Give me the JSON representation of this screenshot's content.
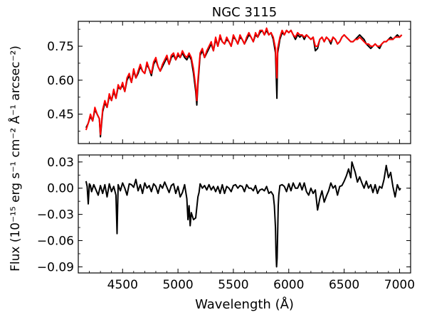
{
  "chart_data": [
    {
      "type": "line",
      "title": "NGC 3115",
      "xlabel": "",
      "ylabel": "",
      "xlim": [
        4100,
        7100
      ],
      "ylim": [
        0.32,
        0.86
      ],
      "yticks": [
        0.45,
        0.6,
        0.75
      ],
      "ytick_labels": [
        "0.45",
        "0.60",
        "0.75"
      ],
      "xticks": [
        4500,
        5000,
        5500,
        6000,
        6500,
        7000
      ],
      "series": [
        {
          "color": "#000000",
          "x": [
            4170,
            4190,
            4210,
            4230,
            4250,
            4270,
            4290,
            4300,
            4320,
            4340,
            4360,
            4380,
            4400,
            4420,
            4440,
            4460,
            4480,
            4500,
            4520,
            4540,
            4560,
            4580,
            4600,
            4620,
            4640,
            4660,
            4680,
            4700,
            4720,
            4740,
            4760,
            4780,
            4800,
            4820,
            4840,
            4860,
            4880,
            4900,
            4920,
            4940,
            4960,
            4980,
            5000,
            5020,
            5040,
            5060,
            5080,
            5100,
            5120,
            5140,
            5160,
            5170,
            5180,
            5200,
            5220,
            5240,
            5260,
            5280,
            5300,
            5320,
            5340,
            5360,
            5380,
            5400,
            5420,
            5440,
            5460,
            5480,
            5500,
            5520,
            5540,
            5560,
            5580,
            5600,
            5620,
            5640,
            5660,
            5680,
            5700,
            5720,
            5740,
            5760,
            5780,
            5800,
            5820,
            5840,
            5860,
            5880,
            5893,
            5900,
            5920,
            5940,
            5960,
            5980,
            6000,
            6020,
            6040,
            6060,
            6080,
            6100,
            6120,
            6140,
            6160,
            6180,
            6200,
            6220,
            6240,
            6260,
            6280,
            6300,
            6320,
            6340,
            6360,
            6380,
            6400,
            6420,
            6440,
            6460,
            6480,
            6500,
            6520,
            6540,
            6560,
            6580,
            6600,
            6620,
            6640,
            6660,
            6680,
            6700,
            6720,
            6740,
            6760,
            6780,
            6800,
            6820,
            6840,
            6860,
            6880,
            6900,
            6920,
            6940,
            6960,
            6980,
            7000,
            7020
          ],
          "y": [
            0.39,
            0.41,
            0.44,
            0.42,
            0.47,
            0.45,
            0.43,
            0.35,
            0.46,
            0.5,
            0.48,
            0.53,
            0.51,
            0.55,
            0.52,
            0.57,
            0.56,
            0.58,
            0.55,
            0.6,
            0.62,
            0.59,
            0.64,
            0.61,
            0.63,
            0.66,
            0.64,
            0.63,
            0.67,
            0.65,
            0.62,
            0.67,
            0.69,
            0.66,
            0.64,
            0.66,
            0.68,
            0.7,
            0.67,
            0.7,
            0.71,
            0.69,
            0.71,
            0.7,
            0.72,
            0.7,
            0.69,
            0.71,
            0.69,
            0.63,
            0.55,
            0.49,
            0.58,
            0.71,
            0.73,
            0.7,
            0.72,
            0.74,
            0.76,
            0.73,
            0.78,
            0.75,
            0.79,
            0.77,
            0.76,
            0.78,
            0.77,
            0.75,
            0.79,
            0.78,
            0.76,
            0.79,
            0.78,
            0.76,
            0.78,
            0.8,
            0.79,
            0.77,
            0.8,
            0.79,
            0.81,
            0.82,
            0.8,
            0.82,
            0.8,
            0.81,
            0.78,
            0.72,
            0.52,
            0.72,
            0.78,
            0.81,
            0.8,
            0.82,
            0.81,
            0.82,
            0.8,
            0.78,
            0.8,
            0.79,
            0.8,
            0.78,
            0.8,
            0.79,
            0.78,
            0.79,
            0.73,
            0.74,
            0.78,
            0.79,
            0.77,
            0.79,
            0.78,
            0.76,
            0.79,
            0.78,
            0.76,
            0.77,
            0.79,
            0.8,
            0.79,
            0.78,
            0.77,
            0.77,
            0.78,
            0.79,
            0.8,
            0.79,
            0.78,
            0.76,
            0.75,
            0.74,
            0.75,
            0.76,
            0.75,
            0.74,
            0.76,
            0.77,
            0.77,
            0.78,
            0.79,
            0.78,
            0.79,
            0.8,
            0.79,
            0.8
          ]
        },
        {
          "color": "#ff0000",
          "x": [
            4170,
            4190,
            4210,
            4230,
            4250,
            4270,
            4290,
            4300,
            4320,
            4340,
            4360,
            4380,
            4400,
            4420,
            4440,
            4460,
            4480,
            4500,
            4520,
            4540,
            4560,
            4580,
            4600,
            4620,
            4640,
            4660,
            4680,
            4700,
            4720,
            4740,
            4760,
            4780,
            4800,
            4820,
            4840,
            4860,
            4880,
            4900,
            4920,
            4940,
            4960,
            4980,
            5000,
            5020,
            5040,
            5060,
            5080,
            5100,
            5120,
            5140,
            5160,
            5170,
            5180,
            5200,
            5220,
            5240,
            5260,
            5280,
            5300,
            5320,
            5340,
            5360,
            5380,
            5400,
            5420,
            5440,
            5460,
            5480,
            5500,
            5520,
            5540,
            5560,
            5580,
            5600,
            5620,
            5640,
            5660,
            5680,
            5700,
            5720,
            5740,
            5760,
            5780,
            5800,
            5820,
            5840,
            5860,
            5880,
            5893,
            5900,
            5920,
            5940,
            5960,
            5980,
            6000,
            6020,
            6040,
            6060,
            6080,
            6100,
            6120,
            6140,
            6160,
            6180,
            6200,
            6220,
            6240,
            6260,
            6280,
            6300,
            6320,
            6340,
            6360,
            6380,
            6400,
            6420,
            6440,
            6460,
            6480,
            6500,
            6520,
            6540,
            6560,
            6580,
            6600,
            6620,
            6640,
            6660,
            6680,
            6700,
            6720,
            6740,
            6760,
            6780,
            6800,
            6820,
            6840,
            6860,
            6880,
            6900,
            6920,
            6940,
            6960,
            6980,
            7000,
            7020
          ],
          "y": [
            0.38,
            0.41,
            0.45,
            0.42,
            0.48,
            0.45,
            0.43,
            0.36,
            0.47,
            0.51,
            0.48,
            0.54,
            0.51,
            0.56,
            0.52,
            0.58,
            0.56,
            0.59,
            0.55,
            0.61,
            0.63,
            0.59,
            0.65,
            0.61,
            0.64,
            0.67,
            0.64,
            0.63,
            0.68,
            0.65,
            0.63,
            0.68,
            0.7,
            0.66,
            0.64,
            0.67,
            0.69,
            0.71,
            0.67,
            0.71,
            0.72,
            0.69,
            0.72,
            0.7,
            0.73,
            0.71,
            0.7,
            0.72,
            0.7,
            0.65,
            0.57,
            0.51,
            0.6,
            0.72,
            0.74,
            0.7,
            0.73,
            0.75,
            0.77,
            0.73,
            0.79,
            0.75,
            0.8,
            0.77,
            0.76,
            0.79,
            0.77,
            0.75,
            0.8,
            0.78,
            0.76,
            0.8,
            0.78,
            0.76,
            0.79,
            0.81,
            0.79,
            0.77,
            0.81,
            0.79,
            0.82,
            0.82,
            0.8,
            0.83,
            0.8,
            0.81,
            0.79,
            0.74,
            0.61,
            0.74,
            0.79,
            0.82,
            0.8,
            0.82,
            0.81,
            0.82,
            0.8,
            0.79,
            0.81,
            0.8,
            0.8,
            0.79,
            0.8,
            0.79,
            0.78,
            0.79,
            0.75,
            0.75,
            0.78,
            0.79,
            0.77,
            0.79,
            0.78,
            0.77,
            0.79,
            0.78,
            0.76,
            0.77,
            0.79,
            0.8,
            0.79,
            0.78,
            0.77,
            0.77,
            0.78,
            0.78,
            0.79,
            0.78,
            0.77,
            0.76,
            0.76,
            0.75,
            0.75,
            0.76,
            0.75,
            0.75,
            0.76,
            0.77,
            0.77,
            0.78,
            0.78,
            0.78,
            0.79,
            0.79,
            0.79,
            0.8
          ]
        }
      ]
    },
    {
      "type": "line",
      "title": "",
      "xlabel": "Wavelength (Å)",
      "ylabel": "",
      "xlim": [
        4100,
        7100
      ],
      "ylim": [
        -0.097,
        0.038
      ],
      "yticks": [
        -0.09,
        -0.06,
        -0.03,
        0.0,
        0.03
      ],
      "ytick_labels": [
        "−0.09",
        "−0.06",
        "−0.03",
        "0.00",
        "0.03"
      ],
      "xticks": [
        4500,
        5000,
        5500,
        6000,
        6500,
        7000
      ],
      "xtick_labels": [
        "4500",
        "5000",
        "5500",
        "6000",
        "6500",
        "7000"
      ],
      "series": [
        {
          "color": "#000000",
          "x": [
            4170,
            4180,
            4190,
            4200,
            4210,
            4220,
            4240,
            4260,
            4280,
            4300,
            4320,
            4340,
            4360,
            4380,
            4400,
            4420,
            4440,
            4450,
            4460,
            4480,
            4500,
            4520,
            4540,
            4560,
            4580,
            4600,
            4620,
            4640,
            4660,
            4680,
            4700,
            4720,
            4740,
            4760,
            4780,
            4800,
            4820,
            4840,
            4860,
            4880,
            4900,
            4920,
            4940,
            4960,
            4980,
            5000,
            5020,
            5040,
            5060,
            5080,
            5090,
            5100,
            5110,
            5120,
            5140,
            5160,
            5170,
            5180,
            5190,
            5200,
            5220,
            5240,
            5260,
            5280,
            5300,
            5320,
            5340,
            5360,
            5380,
            5400,
            5420,
            5440,
            5460,
            5480,
            5500,
            5520,
            5540,
            5560,
            5580,
            5600,
            5620,
            5640,
            5660,
            5680,
            5700,
            5720,
            5740,
            5760,
            5780,
            5800,
            5820,
            5840,
            5860,
            5870,
            5880,
            5885,
            5890,
            5895,
            5900,
            5905,
            5910,
            5920,
            5940,
            5960,
            5980,
            6000,
            6020,
            6040,
            6060,
            6080,
            6100,
            6120,
            6140,
            6160,
            6180,
            6200,
            6220,
            6240,
            6260,
            6280,
            6300,
            6320,
            6340,
            6360,
            6380,
            6400,
            6420,
            6440,
            6460,
            6480,
            6500,
            6520,
            6540,
            6560,
            6570,
            6580,
            6600,
            6620,
            6640,
            6660,
            6680,
            6700,
            6720,
            6740,
            6760,
            6780,
            6800,
            6820,
            6840,
            6860,
            6880,
            6900,
            6920,
            6940,
            6960,
            6980,
            7000,
            7010
          ],
          "y": [
            0.008,
            0.002,
            -0.018,
            0.005,
            0.003,
            -0.004,
            0.004,
            -0.002,
            -0.008,
            0.003,
            -0.006,
            0.004,
            -0.01,
            0.005,
            -0.004,
            0.002,
            -0.008,
            -0.052,
            0.004,
            -0.003,
            0.006,
            0.0,
            -0.008,
            0.005,
            0.004,
            0.001,
            0.01,
            -0.003,
            0.004,
            -0.006,
            0.006,
            0.0,
            0.003,
            -0.004,
            0.005,
            0.002,
            -0.006,
            0.004,
            0.0,
            0.007,
            0.001,
            -0.005,
            0.003,
            0.005,
            -0.006,
            0.002,
            -0.01,
            -0.005,
            0.004,
            -0.012,
            -0.036,
            -0.02,
            -0.043,
            -0.028,
            -0.036,
            -0.034,
            -0.022,
            -0.01,
            -0.005,
            0.005,
            0.0,
            0.003,
            -0.002,
            0.004,
            -0.002,
            0.002,
            -0.004,
            0.002,
            -0.006,
            0.004,
            -0.006,
            0.002,
            0.0,
            -0.004,
            0.003,
            0.004,
            0.0,
            0.003,
            0.002,
            -0.004,
            0.004,
            0.0,
            0.0,
            -0.003,
            0.003,
            -0.006,
            -0.002,
            -0.001,
            -0.003,
            0.002,
            -0.006,
            -0.004,
            -0.008,
            -0.02,
            -0.045,
            -0.075,
            -0.09,
            -0.08,
            -0.05,
            -0.02,
            -0.008,
            0.003,
            0.004,
            0.002,
            -0.004,
            0.005,
            -0.003,
            0.006,
            0.0,
            0.0,
            0.006,
            -0.002,
            0.006,
            -0.004,
            -0.008,
            0.0,
            -0.006,
            -0.002,
            -0.025,
            -0.012,
            -0.003,
            -0.016,
            -0.009,
            -0.003,
            0.006,
            0.0,
            0.003,
            -0.008,
            0.002,
            0.003,
            0.008,
            0.014,
            0.022,
            0.012,
            0.03,
            0.026,
            0.018,
            0.007,
            0.013,
            0.006,
            0.0,
            0.008,
            0.0,
            0.004,
            -0.005,
            0.004,
            -0.006,
            0.002,
            0.0,
            0.01,
            0.026,
            0.012,
            0.018,
            0.002,
            -0.01,
            0.004,
            -0.002,
            0.0
          ]
        }
      ]
    }
  ],
  "shared_ylabel": "Flux (10⁻¹⁵ erg s⁻¹ cm⁻² Å⁻¹ arcsec⁻²)"
}
